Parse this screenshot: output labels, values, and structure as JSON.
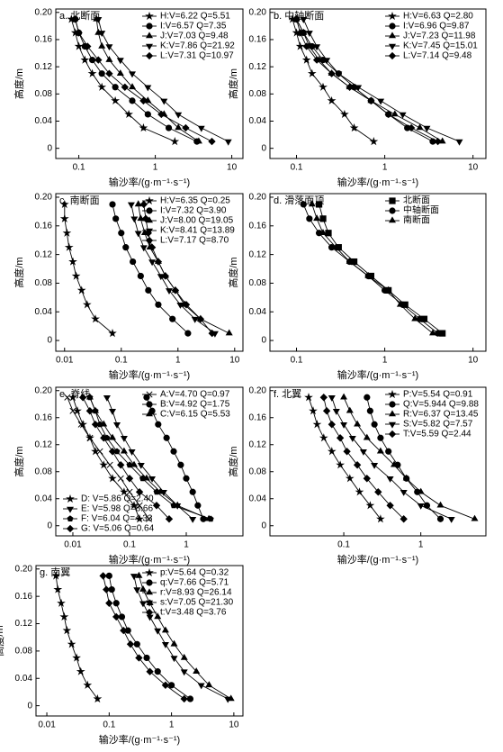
{
  "chart_data": [
    {
      "type": "line",
      "title": "a. 北断面",
      "xlabel": "输沙率/(g·m⁻¹·s⁻¹)",
      "ylabel": "高度/m",
      "xscale": "log",
      "xlim": [
        0.05,
        14
      ],
      "xticks": [
        0.1,
        1,
        10
      ],
      "ylim": [
        -0.015,
        0.205
      ],
      "yticks": [
        0,
        0.04,
        0.08,
        0.12,
        0.16,
        {
          "value": 0.2,
          "label": "0.20"
        }
      ],
      "legend": "upper right",
      "color": "#000000",
      "y": [
        0.19,
        0.17,
        0.15,
        0.13,
        0.11,
        0.09,
        0.07,
        0.05,
        0.03,
        0.01
      ],
      "series": [
        {
          "name": "H:V=6.22 Q=5.51",
          "marker": "star",
          "x": [
            0.08,
            0.09,
            0.1,
            0.12,
            0.15,
            0.2,
            0.3,
            0.45,
            0.7,
            1.8
          ]
        },
        {
          "name": "I:V=6.57 Q=7.35",
          "marker": "circle",
          "x": [
            0.09,
            0.1,
            0.12,
            0.15,
            0.2,
            0.3,
            0.5,
            0.8,
            1.5,
            3.5
          ]
        },
        {
          "name": "J:V=7.03 Q=9.48",
          "marker": "triangle",
          "x": [
            0.17,
            0.18,
            0.2,
            0.25,
            0.35,
            0.5,
            0.8,
            1.3,
            2.0,
            3.7
          ]
        },
        {
          "name": "K:V=7.86 Q=21.92",
          "marker": "triangle-down",
          "x": [
            0.18,
            0.2,
            0.25,
            0.35,
            0.5,
            0.8,
            1.3,
            2.0,
            4.0,
            9.0
          ]
        },
        {
          "name": "L:V=7.31 Q=10.97",
          "marker": "diamond",
          "x": [
            0.09,
            0.1,
            0.13,
            0.18,
            0.25,
            0.4,
            0.7,
            1.2,
            2.5,
            5.5
          ]
        }
      ]
    },
    {
      "type": "line",
      "title": "b. 中轴断面",
      "xlabel": "输沙率/(g·m⁻¹·s⁻¹)",
      "ylabel": "高度/m",
      "xscale": "log",
      "xlim": [
        0.05,
        14
      ],
      "xticks": [
        0.1,
        1,
        10
      ],
      "ylim": [
        -0.015,
        0.205
      ],
      "yticks": [
        0,
        0.04,
        0.08,
        0.12,
        0.16,
        {
          "value": 0.2,
          "label": "0.20"
        }
      ],
      "legend": "upper right",
      "color": "#000000",
      "y": [
        0.19,
        0.17,
        0.15,
        0.13,
        0.11,
        0.09,
        0.07,
        0.05,
        0.03,
        0.01
      ],
      "series": [
        {
          "name": "H:V=6.63 Q=2.80",
          "marker": "star",
          "x": [
            0.09,
            0.1,
            0.11,
            0.13,
            0.15,
            0.2,
            0.25,
            0.35,
            0.45,
            0.75
          ]
        },
        {
          "name": "I:V=6.96 Q=9.87",
          "marker": "circle",
          "x": [
            0.1,
            0.12,
            0.15,
            0.2,
            0.3,
            0.45,
            0.7,
            1.1,
            1.8,
            3.5
          ]
        },
        {
          "name": "J:V=7.23 Q=11.98",
          "marker": "triangle",
          "x": [
            0.1,
            0.12,
            0.14,
            0.18,
            0.25,
            0.4,
            0.7,
            1.3,
            2.5,
            4.5
          ]
        },
        {
          "name": "K:V=7.45 Q=15.01",
          "marker": "triangle-down",
          "x": [
            0.12,
            0.14,
            0.17,
            0.22,
            0.3,
            0.5,
            0.9,
            1.6,
            3.0,
            7.0
          ]
        },
        {
          "name": "L:V=7.14 Q=9.48",
          "marker": "diamond",
          "x": [
            0.1,
            0.11,
            0.13,
            0.17,
            0.25,
            0.4,
            0.7,
            1.1,
            2.0,
            4.0
          ]
        }
      ]
    },
    {
      "type": "line",
      "title": "c. 南断面",
      "xlabel": "输沙率/(g·m⁻¹·s⁻¹)",
      "ylabel": "高度/m",
      "xscale": "log",
      "xlim": [
        0.007,
        14
      ],
      "xticks": [
        0.01,
        0.1,
        1,
        10
      ],
      "ylim": [
        -0.015,
        0.205
      ],
      "yticks": [
        0,
        0.04,
        0.08,
        0.12,
        0.16,
        {
          "value": 0.2,
          "label": "0.20"
        }
      ],
      "legend": "upper right",
      "color": "#000000",
      "y": [
        0.19,
        0.17,
        0.15,
        0.13,
        0.11,
        0.09,
        0.07,
        0.05,
        0.03,
        0.01
      ],
      "series": [
        {
          "name": "H:V=6.35 Q=0.25",
          "marker": "star",
          "x": [
            0.01,
            0.01,
            0.011,
            0.012,
            0.014,
            0.016,
            0.02,
            0.025,
            0.035,
            0.07
          ]
        },
        {
          "name": "I:V=7.32 Q=3.90",
          "marker": "circle",
          "x": [
            0.07,
            0.08,
            0.1,
            0.12,
            0.16,
            0.22,
            0.3,
            0.45,
            0.8,
            1.5
          ]
        },
        {
          "name": "J:V=8.00 Q=19.05",
          "marker": "triangle",
          "x": [
            0.2,
            0.22,
            0.26,
            0.32,
            0.45,
            0.6,
            0.9,
            1.3,
            2.5,
            8
          ]
        },
        {
          "name": "K:V=8.41 Q=13.89",
          "marker": "triangle-down",
          "x": [
            0.15,
            0.17,
            0.2,
            0.25,
            0.35,
            0.5,
            0.7,
            1.1,
            2,
            4.5
          ]
        },
        {
          "name": "L:V=7.17 Q=8.70",
          "marker": "diamond",
          "x": [
            0.25,
            0.27,
            0.3,
            0.35,
            0.45,
            0.6,
            0.9,
            1.4,
            2.5,
            4
          ]
        }
      ]
    },
    {
      "type": "line",
      "title": "d. 滑落面顶",
      "xlabel": "输沙率/(g·m⁻¹·s⁻¹)",
      "ylabel": "高度/m",
      "xscale": "log",
      "xlim": [
        0.05,
        14
      ],
      "xticks": [
        0.1,
        1,
        10
      ],
      "ylim": [
        -0.015,
        0.205
      ],
      "yticks": [
        0,
        0.04,
        0.08,
        0.12,
        0.16,
        {
          "value": 0.2,
          "label": "0.20"
        }
      ],
      "legend": "upper right",
      "color": "#000000",
      "y": [
        0.19,
        0.17,
        0.15,
        0.13,
        0.11,
        0.09,
        0.07,
        0.05,
        0.03,
        0.01
      ],
      "series": [
        {
          "name": "北断面",
          "marker": "square",
          "x": [
            0.18,
            0.2,
            0.23,
            0.3,
            0.45,
            0.7,
            1.1,
            1.7,
            2.8,
            4.5
          ]
        },
        {
          "name": "中轴断面",
          "marker": "circle",
          "x": [
            0.12,
            0.14,
            0.18,
            0.25,
            0.4,
            0.65,
            1,
            1.6,
            2.5,
            4
          ]
        },
        {
          "name": "南断面",
          "marker": "triangle",
          "x": [
            0.15,
            0.17,
            0.2,
            0.28,
            0.4,
            0.65,
            1.1,
            1.5,
            2.2,
            3.5
          ]
        }
      ]
    },
    {
      "type": "line",
      "title": "e. 脊线",
      "xlabel": "输沙率/(g·m⁻¹·s⁻¹)",
      "ylabel": "高度/m",
      "xscale": "log",
      "xlim": [
        0.005,
        10
      ],
      "xticks": [
        0.01,
        0.1,
        1
      ],
      "ylim": [
        -0.015,
        0.205
      ],
      "yticks": [
        0,
        0.04,
        0.08,
        0.12,
        0.16,
        {
          "value": 0.2,
          "label": "0.20"
        }
      ],
      "legend": "upper right",
      "color": "#000000",
      "y": [
        0.19,
        0.17,
        0.15,
        0.13,
        0.11,
        0.09,
        0.07,
        0.05,
        0.03,
        0.01
      ],
      "series": [
        {
          "name": "A:V=4.70 Q=0.97",
          "marker": "x",
          "x": [
            0.008,
            0.01,
            0.014,
            0.02,
            0.03,
            0.045,
            0.07,
            0.1,
            0.15,
            0.22
          ]
        },
        {
          "name": "B:V=4.92 Q=1.75",
          "marker": "circle",
          "x": [
            0.2,
            0.25,
            0.32,
            0.45,
            0.6,
            0.8,
            1,
            1.3,
            1.6,
            2.0
          ]
        },
        {
          "name": "C:V=6.15 Q=5.53",
          "marker": "triangle",
          "x": [
            0.02,
            0.025,
            0.035,
            0.05,
            0.08,
            0.12,
            0.2,
            0.35,
            0.7,
            2.5
          ]
        },
        {
          "name": "D: V=5.86 Q=2.40",
          "marker": "star",
          "legend": "lower left",
          "x": [
            0.01,
            0.012,
            0.015,
            0.02,
            0.025,
            0.035,
            0.05,
            0.08,
            0.12,
            0.15
          ]
        },
        {
          "name": "E: V=5.98 Q=8.66",
          "marker": "triangle-down",
          "legend": "lower left",
          "x": [
            0.04,
            0.05,
            0.06,
            0.08,
            0.11,
            0.16,
            0.25,
            0.4,
            0.7,
            1.3
          ]
        },
        {
          "name": "F: V=6.04 Q=4.33",
          "marker": "pentagon",
          "legend": "lower left",
          "x": [
            0.02,
            0.025,
            0.03,
            0.04,
            0.06,
            0.1,
            0.17,
            0.3,
            0.6,
            2.7
          ]
        },
        {
          "name": "G: V=5.06 Q=0.64",
          "marker": "diamond",
          "legend": "lower left",
          "x": [
            0.015,
            0.02,
            0.025,
            0.035,
            0.05,
            0.07,
            0.1,
            0.15,
            0.3,
            0.5
          ]
        }
      ]
    },
    {
      "type": "line",
      "title": "f. 北翼",
      "xlabel": "输沙率/(g·m⁻¹·s⁻¹)",
      "ylabel": "高度/m",
      "xscale": "log",
      "xlim": [
        0.011,
        7
      ],
      "xticks": [
        0.1,
        1
      ],
      "ylim": [
        -0.015,
        0.205
      ],
      "yticks": [
        0,
        0.04,
        0.08,
        0.12,
        0.16,
        {
          "value": 0.2,
          "label": "0.20"
        }
      ],
      "legend": "upper right",
      "color": "#000000",
      "y": [
        0.19,
        0.17,
        0.15,
        0.13,
        0.11,
        0.09,
        0.07,
        0.05,
        0.03,
        0.01
      ],
      "series": [
        {
          "name": "P:V=5.54 Q=0.91",
          "marker": "star",
          "x": [
            0.035,
            0.04,
            0.045,
            0.055,
            0.07,
            0.09,
            0.12,
            0.16,
            0.22,
            0.3
          ]
        },
        {
          "name": "Q:V=5.944 Q=9.88",
          "marker": "circle",
          "x": [
            0.2,
            0.22,
            0.25,
            0.3,
            0.38,
            0.5,
            0.65,
            0.9,
            1.2,
            1.8
          ]
        },
        {
          "name": "R:V=6.37 Q=13.45",
          "marker": "triangle",
          "x": [
            0.1,
            0.12,
            0.15,
            0.2,
            0.3,
            0.45,
            0.65,
            1,
            1.8,
            5
          ]
        },
        {
          "name": "S:V=5.82 Q=7.57",
          "marker": "triangle-down",
          "x": [
            0.07,
            0.08,
            0.1,
            0.13,
            0.18,
            0.25,
            0.4,
            0.6,
            1,
            2.5
          ]
        },
        {
          "name": "T:V=5.59 Q=2.44",
          "marker": "diamond",
          "x": [
            0.055,
            0.06,
            0.07,
            0.09,
            0.11,
            0.15,
            0.2,
            0.28,
            0.4,
            0.6
          ]
        }
      ]
    },
    {
      "type": "line",
      "title": "g. 南翼",
      "xlabel": "输沙率/(g·m⁻¹·s⁻¹)",
      "ylabel": "高度/m",
      "xscale": "log",
      "xlim": [
        0.0067,
        14
      ],
      "xticks": [
        0.01,
        0.1,
        1,
        10
      ],
      "ylim": [
        -0.015,
        0.205
      ],
      "yticks": [
        0,
        0.04,
        0.08,
        0.12,
        0.16,
        {
          "value": 0.2,
          "label": "0.20"
        }
      ],
      "legend": "upper right",
      "color": "#000000",
      "y": [
        0.19,
        0.17,
        0.15,
        0.13,
        0.11,
        0.09,
        0.07,
        0.05,
        0.03,
        0.01
      ],
      "series": [
        {
          "name": "p:V=5.64 Q=0.32",
          "marker": "star",
          "x": [
            0.014,
            0.015,
            0.017,
            0.019,
            0.021,
            0.025,
            0.03,
            0.035,
            0.045,
            0.065
          ]
        },
        {
          "name": "q:V=7.66 Q=5.71",
          "marker": "circle",
          "x": [
            0.1,
            0.11,
            0.13,
            0.16,
            0.2,
            0.28,
            0.4,
            0.6,
            1,
            2
          ]
        },
        {
          "name": "r:V=8.93 Q=26.14",
          "marker": "triangle",
          "x": [
            0.3,
            0.35,
            0.45,
            0.6,
            0.8,
            1.1,
            1.6,
            2.5,
            4,
            9
          ]
        },
        {
          "name": "s:V=7.05 Q=21.30",
          "marker": "triangle-down",
          "x": [
            0.25,
            0.28,
            0.35,
            0.45,
            0.6,
            0.8,
            1.1,
            1.6,
            3,
            8
          ]
        },
        {
          "name": "t:V=3.48 Q=3.76",
          "marker": "diamond",
          "x": [
            0.08,
            0.09,
            0.1,
            0.13,
            0.17,
            0.22,
            0.3,
            0.45,
            0.8,
            1.6
          ]
        }
      ]
    }
  ]
}
